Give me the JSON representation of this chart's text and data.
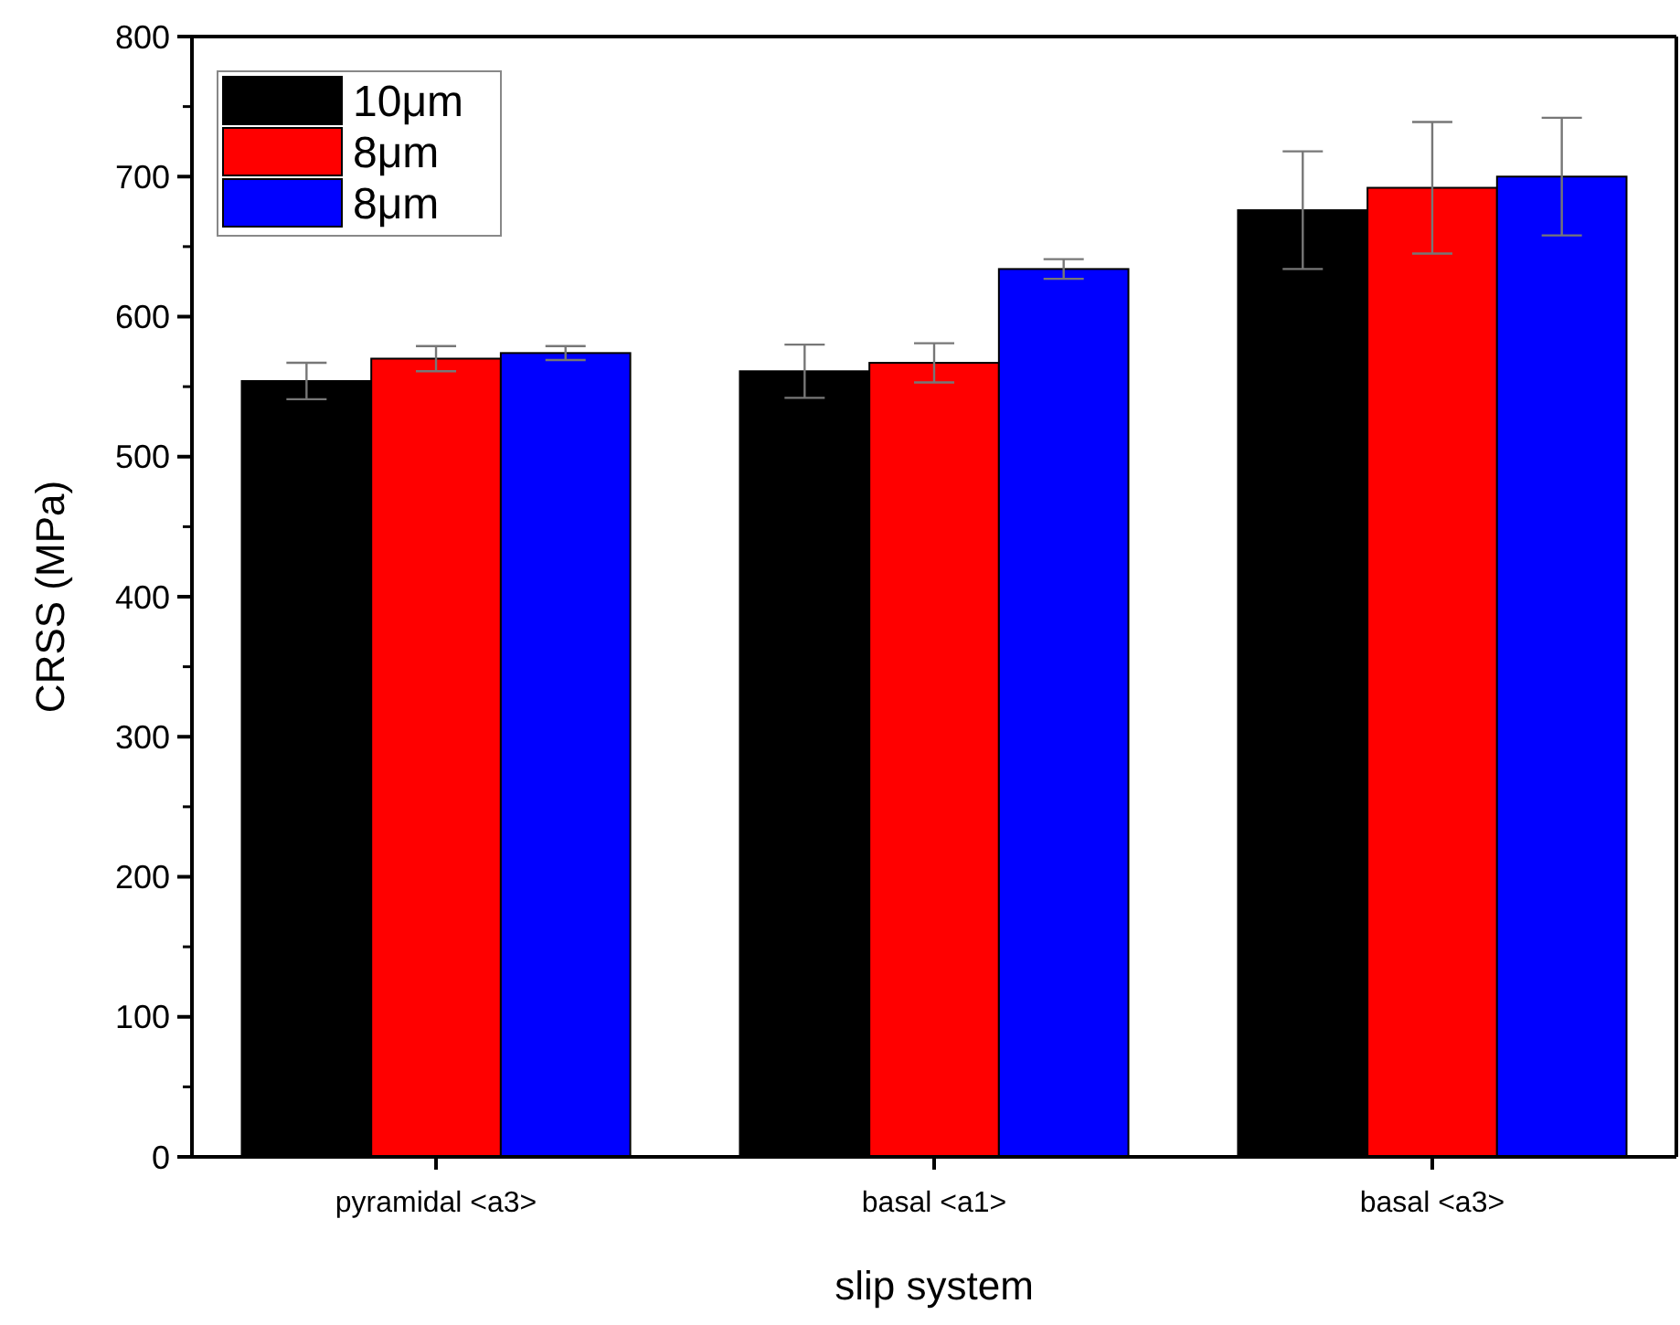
{
  "chart_data": {
    "type": "bar",
    "xlabel": "slip system",
    "ylabel": "CRSS (MPa)",
    "categories": [
      "pyramidal <a3>",
      "basal <a1>",
      "basal <a3>"
    ],
    "series": [
      {
        "name": "10μm",
        "color": "#000000",
        "values": [
          554,
          561,
          676
        ],
        "errors": [
          13,
          19,
          42
        ]
      },
      {
        "name": "8μm",
        "color": "#ff0000",
        "values": [
          570,
          567,
          692
        ],
        "errors": [
          9,
          14,
          47
        ]
      },
      {
        "name": "8μm",
        "color": "#0000ff",
        "values": [
          574,
          634,
          700
        ],
        "errors": [
          5,
          7,
          42
        ]
      }
    ],
    "ylim": [
      0,
      800
    ],
    "yticks": [
      0,
      100,
      200,
      300,
      400,
      500,
      600,
      700,
      800
    ],
    "grid": false,
    "legend": "top left"
  }
}
